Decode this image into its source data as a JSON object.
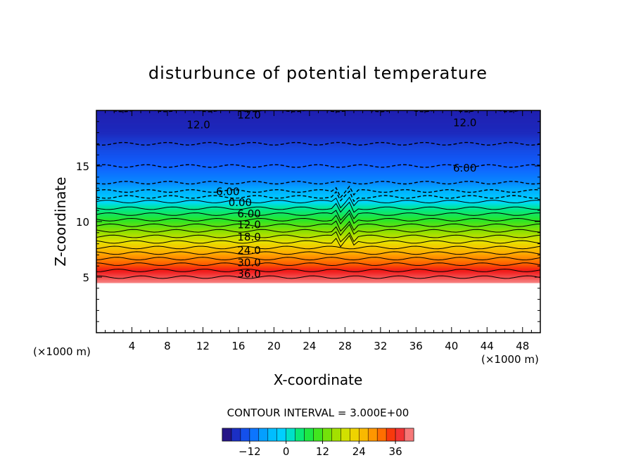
{
  "chart_data": {
    "type": "heatmap",
    "title": "disturbunce of potential temperature",
    "xlabel": "X-coordinate",
    "ylabel": "Z-coordinate",
    "x_unit": "(×1000 m)",
    "y_unit": "(×1000 m)",
    "xlim": [
      0,
      50
    ],
    "ylim": [
      0,
      20
    ],
    "xticks": [
      4,
      8,
      12,
      16,
      20,
      24,
      28,
      32,
      36,
      40,
      44,
      48
    ],
    "yticks": [
      5,
      10,
      15
    ],
    "contour_interval_label": "CONTOUR INTERVAL = 3.000E+00",
    "colorbar": {
      "ticks": [
        -12,
        0,
        12,
        24,
        36
      ],
      "tick_labels": [
        "−12",
        "0",
        "12",
        "24",
        "36"
      ],
      "range": [
        -21,
        42
      ]
    },
    "contour_labels": [
      {
        "text": "12.0",
        "x": 17.2,
        "z": 19.6
      },
      {
        "text": "12.0",
        "x": 11.5,
        "z": 18.7
      },
      {
        "text": "12.0",
        "x": 41.5,
        "z": 18.9
      },
      {
        "text": "6.00",
        "x": 41.5,
        "z": 14.8
      },
      {
        "text": "6.00",
        "x": 14.8,
        "z": 12.7
      },
      {
        "text": "0.00",
        "x": 16.2,
        "z": 11.7
      },
      {
        "text": "6.00",
        "x": 17.2,
        "z": 10.7
      },
      {
        "text": "12.0",
        "x": 17.2,
        "z": 9.7
      },
      {
        "text": "18.0",
        "x": 17.2,
        "z": 8.6
      },
      {
        "text": "24.0",
        "x": 17.2,
        "z": 7.4
      },
      {
        "text": "30.0",
        "x": 17.2,
        "z": 6.3
      },
      {
        "text": "36.0",
        "x": 17.2,
        "z": 5.3
      }
    ],
    "profile": {
      "z": [
        4.5,
        5.0,
        6.0,
        7.0,
        8.0,
        9.0,
        10.0,
        11.0,
        11.8,
        12.5,
        13.5,
        15.0,
        16.5,
        18.0,
        20.0
      ],
      "value": [
        41,
        39,
        34,
        28,
        22,
        16,
        10,
        4,
        0,
        -5,
        -9,
        -12,
        -14,
        -17,
        -18
      ]
    },
    "missing_below_z": 4.5
  }
}
